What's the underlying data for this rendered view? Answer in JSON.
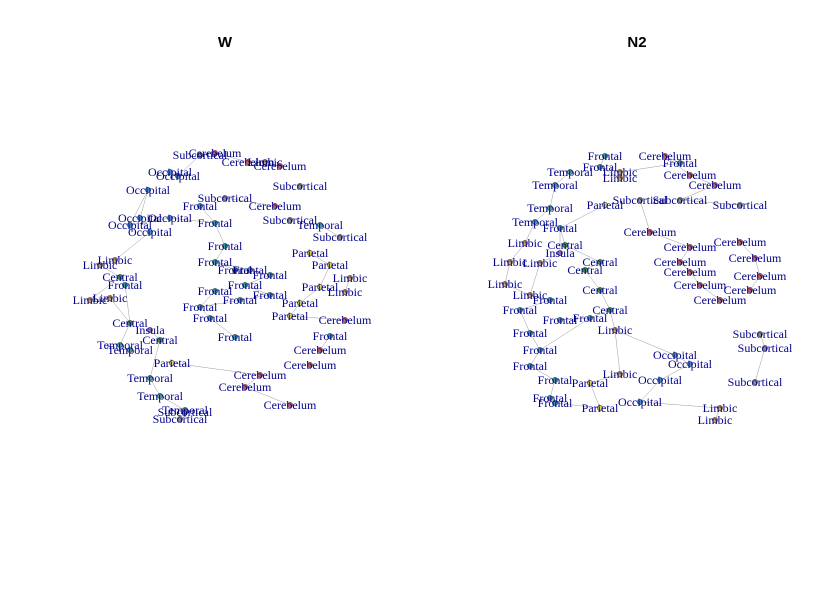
{
  "colors": {
    "label": "#00008B",
    "edge": "#9a9a9a",
    "Cerebelum": "#e05a5a",
    "Subcortical": "#8f8f8f",
    "Occipital": "#3a8fd6",
    "Frontal": "#2fa9a2",
    "Central": "#3f9a3f",
    "Limbic": "#e6a94a",
    "Temporal": "#4bb0a8",
    "Parietal": "#e2d050",
    "Insula": "#a07ad0"
  },
  "panels": [
    {
      "title": "W",
      "nodes": [
        {
          "label": "Subcortical"
        },
        {
          "label": "Cerebelum"
        },
        {
          "label": "Cerebelum"
        },
        {
          "label": "Limbic"
        },
        {
          "label": "Cerebelum"
        },
        {
          "label": "Occipital"
        },
        {
          "label": "Subcortical"
        },
        {
          "label": "Occipital"
        },
        {
          "label": "Occipital"
        },
        {
          "label": "Subcortical"
        },
        {
          "label": "Cerebelum"
        },
        {
          "label": "Frontal"
        },
        {
          "label": "Occipital"
        },
        {
          "label": "Occipital"
        },
        {
          "label": "Frontal"
        },
        {
          "label": "Subcortical"
        },
        {
          "label": "Temporal"
        },
        {
          "label": "Subcortical"
        },
        {
          "label": "Occipital"
        },
        {
          "label": "Occipital"
        },
        {
          "label": "Frontal"
        },
        {
          "label": "Parietal"
        },
        {
          "label": "Frontal"
        },
        {
          "label": "Limbic"
        },
        {
          "label": "Limbic"
        },
        {
          "label": "Frontal"
        },
        {
          "label": "Frontal"
        },
        {
          "label": "Frontal"
        },
        {
          "label": "Parietal"
        },
        {
          "label": "Limbic"
        },
        {
          "label": "Limbic"
        },
        {
          "label": "Central"
        },
        {
          "label": "Frontal"
        },
        {
          "label": "Frontal"
        },
        {
          "label": "Parietal"
        },
        {
          "label": "Limbic"
        },
        {
          "label": "Limbic"
        },
        {
          "label": "Frontal"
        },
        {
          "label": "Frontal"
        },
        {
          "label": "Parietal"
        },
        {
          "label": "Frontal"
        },
        {
          "label": "Parietal"
        },
        {
          "label": "Central"
        },
        {
          "label": "Frontal"
        },
        {
          "label": "Insula"
        },
        {
          "label": "Frontal"
        },
        {
          "label": "Cerebelum"
        },
        {
          "label": "Frontal"
        },
        {
          "label": "Temporal"
        },
        {
          "label": "Frontal"
        },
        {
          "label": "Central"
        },
        {
          "label": "Temporal"
        },
        {
          "label": "Cerebelum"
        },
        {
          "label": "Temporal"
        },
        {
          "label": "Parietal"
        },
        {
          "label": "Cerebelum"
        },
        {
          "label": "Temporal"
        },
        {
          "label": "Cerebelum"
        },
        {
          "label": "Cerebelum"
        },
        {
          "label": "Temporal"
        },
        {
          "label": "Cerebelum"
        },
        {
          "label": "Subcortical"
        },
        {
          "label": "Subcortical"
        }
      ]
    },
    {
      "title": "N2",
      "nodes": [
        {
          "label": "Frontal"
        },
        {
          "label": "Cerebelum"
        },
        {
          "label": "Limbic"
        },
        {
          "label": "Frontal"
        },
        {
          "label": "Temporal"
        },
        {
          "label": "Frontal"
        },
        {
          "label": "Limbic"
        },
        {
          "label": "Cerebelum"
        },
        {
          "label": "Temporal"
        },
        {
          "label": "Cerebelum"
        },
        {
          "label": "Parietal"
        },
        {
          "label": "Subcortical"
        },
        {
          "label": "Temporal"
        },
        {
          "label": "Subcortical"
        },
        {
          "label": "Subcortical"
        },
        {
          "label": "Temporal"
        },
        {
          "label": "Frontal"
        },
        {
          "label": "Cerebelum"
        },
        {
          "label": "Limbic"
        },
        {
          "label": "Central"
        },
        {
          "label": "Cerebelum"
        },
        {
          "label": "Cerebelum"
        },
        {
          "label": "Limbic"
        },
        {
          "label": "Insula"
        },
        {
          "label": "Central"
        },
        {
          "label": "Cerebelum"
        },
        {
          "label": "Cerebelum"
        },
        {
          "label": "Limbic"
        },
        {
          "label": "Limbic"
        },
        {
          "label": "Central"
        },
        {
          "label": "Cerebelum"
        },
        {
          "label": "Cerebelum"
        },
        {
          "label": "Limbic"
        },
        {
          "label": "Central"
        },
        {
          "label": "Cerebelum"
        },
        {
          "label": "Cerebelum"
        },
        {
          "label": "Frontal"
        },
        {
          "label": "Central"
        },
        {
          "label": "Cerebelum"
        },
        {
          "label": "Frontal"
        },
        {
          "label": "Frontal"
        },
        {
          "label": "Frontal"
        },
        {
          "label": "Frontal"
        },
        {
          "label": "Limbic"
        },
        {
          "label": "Subcortical"
        },
        {
          "label": "Frontal"
        },
        {
          "label": "Occipital"
        },
        {
          "label": "Subcortical"
        },
        {
          "label": "Frontal"
        },
        {
          "label": "Occipital"
        },
        {
          "label": "Subcortical"
        },
        {
          "label": "Frontal"
        },
        {
          "label": "Limbic"
        },
        {
          "label": "Occipital"
        },
        {
          "label": "Frontal"
        },
        {
          "label": "Parietal"
        },
        {
          "label": "Occipital"
        },
        {
          "label": "Frontal"
        },
        {
          "label": "Parietal"
        },
        {
          "label": "Limbic"
        },
        {
          "label": "Limbic"
        }
      ]
    }
  ]
}
